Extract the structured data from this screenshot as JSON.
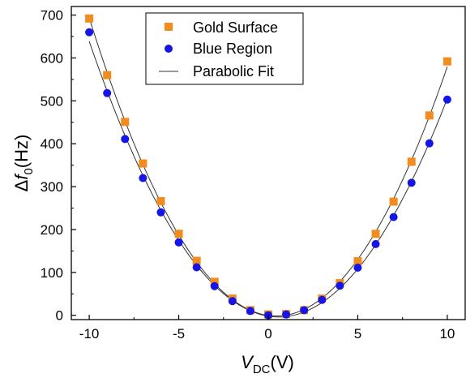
{
  "chart_data": {
    "type": "scatter",
    "xlim": [
      -11,
      11
    ],
    "ylim": [
      -10,
      720
    ],
    "x_ticks": [
      -10,
      -5,
      0,
      5,
      10
    ],
    "y_ticks": [
      0,
      100,
      200,
      300,
      400,
      500,
      600,
      700
    ],
    "x_tick_labels": [
      "-10",
      "-5",
      "0",
      "5",
      "10"
    ],
    "y_tick_labels": [
      "0",
      "100",
      "200",
      "300",
      "400",
      "500",
      "600",
      "700"
    ],
    "xlabel": {
      "main": "V",
      "sub": "DC",
      "unit": "(V)"
    },
    "ylabel": {
      "prefix": "Δ",
      "main": "f",
      "sub": "0",
      "unit": "(Hz)"
    },
    "legend_position": "top-center",
    "grid": false,
    "series": [
      {
        "name": "Gold Surface",
        "marker": "square",
        "color": "#F28C1E",
        "x": [
          -10,
          -9,
          -8,
          -7,
          -6,
          -5,
          -4,
          -3,
          -2,
          -1,
          0,
          1,
          2,
          3,
          4,
          5,
          6,
          7,
          8,
          9,
          10
        ],
        "y": [
          692,
          560,
          451,
          354,
          266,
          190,
          127,
          78,
          39,
          12,
          2,
          3,
          12,
          39,
          75,
          126,
          190,
          265,
          358,
          466,
          592
        ]
      },
      {
        "name": "Blue Region",
        "marker": "circle",
        "color": "#1515E6",
        "x": [
          -10,
          -9,
          -8,
          -7,
          -6,
          -5,
          -4,
          -3,
          -2,
          -1,
          0,
          1,
          2,
          3,
          4,
          5,
          6,
          7,
          8,
          9,
          10
        ],
        "y": [
          660,
          518,
          411,
          320,
          240,
          170,
          112,
          68,
          33,
          10,
          0,
          2,
          12,
          36,
          69,
          111,
          166,
          229,
          309,
          401,
          503
        ]
      },
      {
        "name": "Parabolic Fit",
        "marker": "line",
        "color": "#333333"
      }
    ]
  }
}
